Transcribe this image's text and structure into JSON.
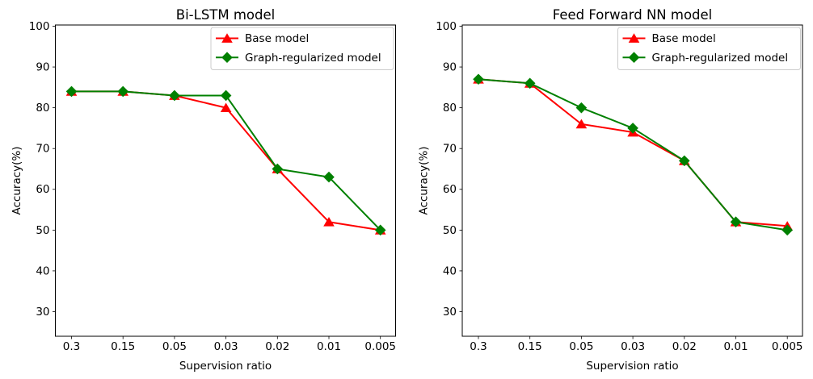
{
  "figure": {
    "background": "#ffffff",
    "frame_color": "#000000",
    "legend_border_color": "#cccccc"
  },
  "chart_data": [
    {
      "type": "line",
      "title": "Bi-LSTM model",
      "xlabel": "Supervision ratio",
      "ylabel": "Accuracy(%)",
      "categories": [
        "0.3",
        "0.15",
        "0.05",
        "0.03",
        "0.02",
        "0.01",
        "0.005"
      ],
      "yticks": [
        100,
        90,
        80,
        70,
        60,
        50,
        40,
        30
      ],
      "ylim": [
        24,
        100
      ],
      "grid": false,
      "legend_position": "upper right",
      "series": [
        {
          "name": "Base model",
          "color": "#ff0000",
          "marker": "triangle-up",
          "values": [
            84,
            84,
            83,
            80,
            65,
            52,
            50
          ]
        },
        {
          "name": "Graph-regularized model",
          "color": "#008000",
          "marker": "diamond",
          "values": [
            84,
            84,
            83,
            83,
            65,
            63,
            50
          ]
        }
      ]
    },
    {
      "type": "line",
      "title": "Feed Forward NN model",
      "xlabel": "Supervision ratio",
      "ylabel": "Accuracy(%)",
      "categories": [
        "0.3",
        "0.15",
        "0.05",
        "0.03",
        "0.02",
        "0.01",
        "0.005"
      ],
      "yticks": [
        100,
        90,
        80,
        70,
        60,
        50,
        40,
        30
      ],
      "ylim": [
        24,
        100
      ],
      "grid": false,
      "legend_position": "upper right",
      "series": [
        {
          "name": "Base model",
          "color": "#ff0000",
          "marker": "triangle-up",
          "values": [
            87,
            86,
            76,
            74,
            67,
            52,
            51
          ]
        },
        {
          "name": "Graph-regularized model",
          "color": "#008000",
          "marker": "diamond",
          "values": [
            87,
            86,
            80,
            75,
            67,
            52,
            50
          ]
        }
      ]
    }
  ]
}
